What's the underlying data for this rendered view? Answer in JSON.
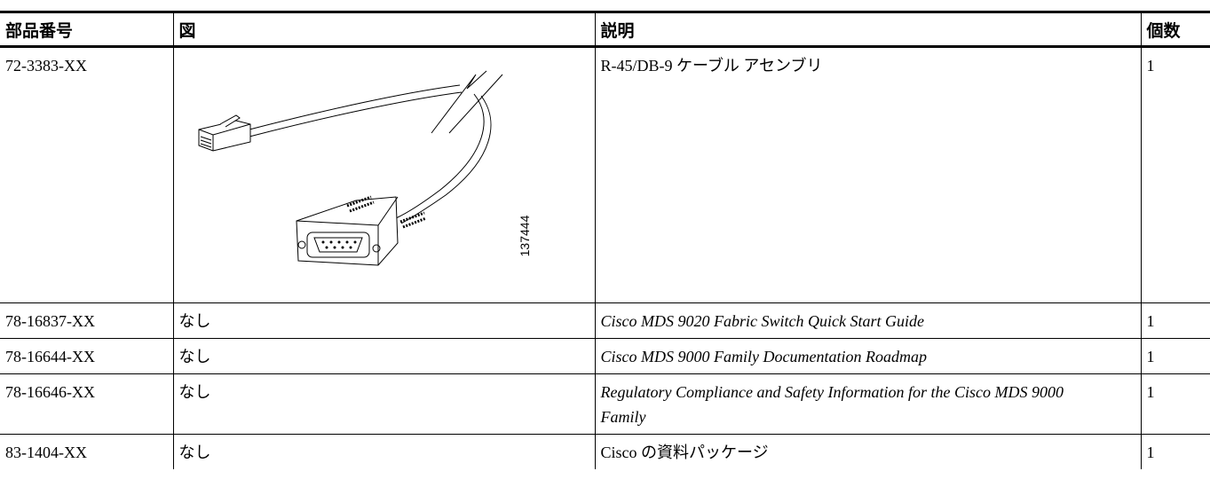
{
  "table": {
    "header": [
      "部品番号",
      "図",
      "説明",
      "個数"
    ],
    "rows": [
      {
        "part": "72-3383-XX",
        "description": "R-45/DB-9 ケーブル アセンブリ",
        "quantity": 1
      },
      {
        "part": "78-16837-XX",
        "figure": "なし",
        "description": "Cisco MDS 9020 Fabric Switch Quick Start Guide",
        "quantity": 1
      },
      {
        "part": "78-16644-XX",
        "figure": "なし",
        "description": "Cisco MDS 9000 Family Documentation Roadmap",
        "quantity": 1
      },
      {
        "part": "78-16646-XX",
        "figure": "なし",
        "description": "Regulatory Compliance and Safety Information for the Cisco MDS 9000 Family",
        "quantity": 1
      },
      {
        "part": "83-1404-XX",
        "figure": "なし",
        "description": "Cisco の資料パッケージ",
        "quantity": 1
      }
    ]
  },
  "figure": {
    "label": "137444"
  }
}
